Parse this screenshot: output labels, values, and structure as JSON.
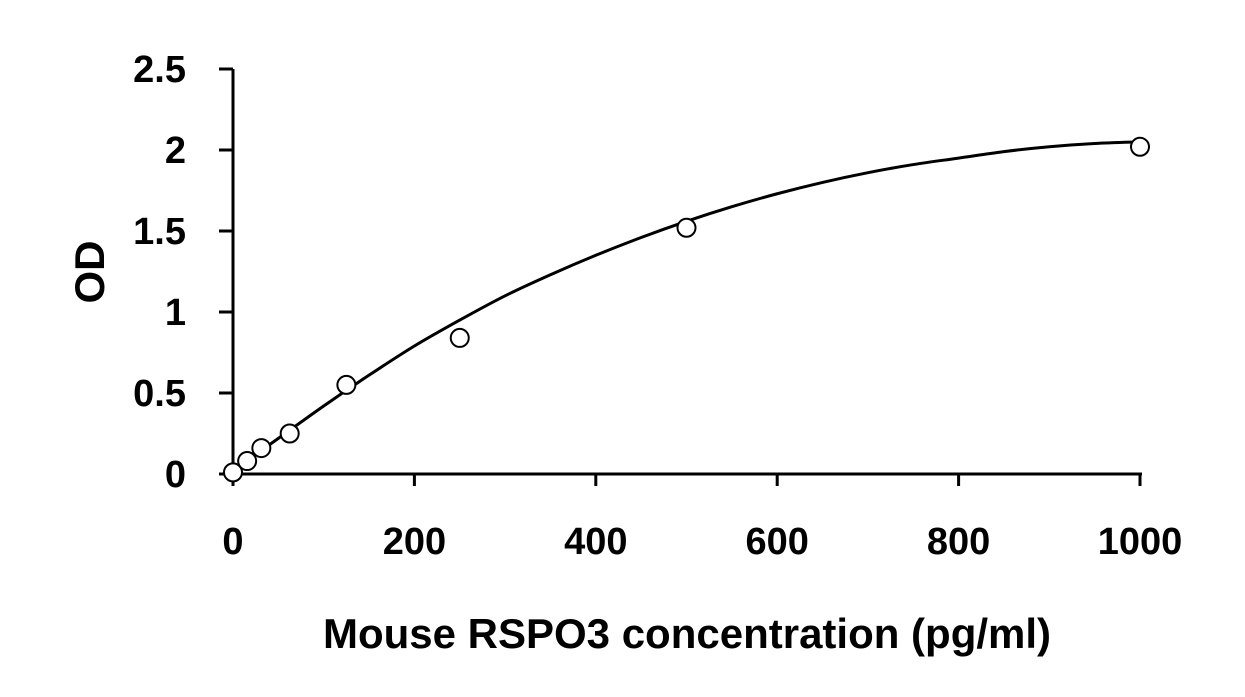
{
  "chart_data": {
    "type": "scatter",
    "title": "",
    "xlabel": "Mouse RSPO3 concentration (pg/ml)",
    "ylabel": "OD",
    "xlim": [
      0,
      1000
    ],
    "ylim": [
      0,
      2.5
    ],
    "x_ticks": [
      0,
      200,
      400,
      600,
      800,
      1000
    ],
    "y_ticks": [
      0,
      0.5,
      1,
      1.5,
      2,
      2.5
    ],
    "x_tick_labels": [
      "0",
      "200",
      "400",
      "600",
      "800",
      "1000"
    ],
    "y_tick_labels": [
      "0",
      "0.5",
      "1",
      "1.5",
      "2",
      "2.5"
    ],
    "grid": false,
    "legend": "none",
    "series": [
      {
        "marker": "open-circle",
        "x": [
          0,
          15.6,
          31.25,
          62.5,
          125,
          250,
          500,
          1000
        ],
        "y": [
          0.01,
          0.08,
          0.16,
          0.25,
          0.55,
          0.84,
          1.52,
          2.02
        ]
      }
    ],
    "fit_curve": {
      "style": "solid",
      "color": "#000000",
      "x": [
        0,
        50,
        100,
        150,
        200,
        250,
        300,
        350,
        400,
        450,
        500,
        550,
        600,
        650,
        700,
        750,
        800,
        850,
        900,
        950,
        1000
      ],
      "y": [
        0.02,
        0.22,
        0.42,
        0.61,
        0.79,
        0.95,
        1.1,
        1.23,
        1.35,
        1.46,
        1.56,
        1.65,
        1.73,
        1.8,
        1.86,
        1.91,
        1.95,
        1.99,
        2.02,
        2.04,
        2.05
      ]
    }
  }
}
